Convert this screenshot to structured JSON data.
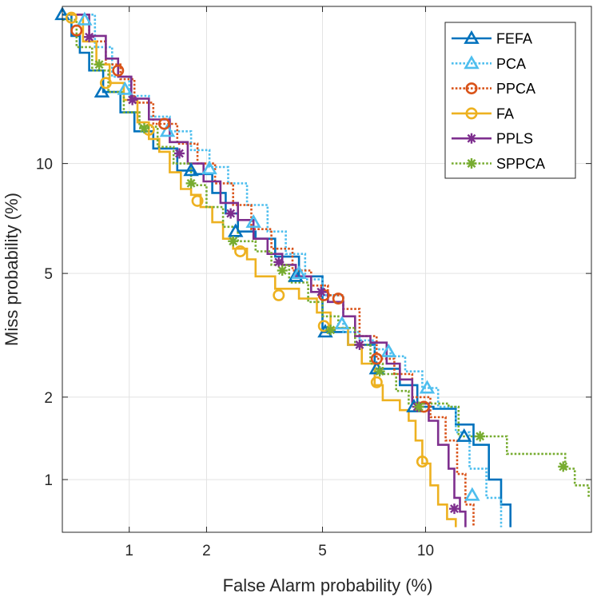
{
  "chart_data": {
    "type": "line",
    "subtype": "DET curve (normal-deviate scale)",
    "xlabel": "False Alarm probability (%)",
    "ylabel": "Miss probability (%)",
    "xlim": [
      0.52,
      24.3
    ],
    "ylim": [
      0.62,
      22.3
    ],
    "xticks": [
      1,
      2,
      5,
      10
    ],
    "xtick_labels": [
      "1",
      "2",
      "5",
      "10"
    ],
    "yticks": [
      1,
      2,
      5,
      10
    ],
    "ytick_labels": [
      "1",
      "2",
      "5",
      "10"
    ],
    "grid": true,
    "legend_position": "top-right",
    "series": [
      {
        "name": "FEFA",
        "color": "#0072BD",
        "linestyle": "solid",
        "marker": "triangle",
        "points": [
          [
            0.52,
            21.5
          ],
          [
            0.57,
            19.5
          ],
          [
            0.62,
            18.0
          ],
          [
            0.68,
            16.5
          ],
          [
            0.78,
            14.8
          ],
          [
            0.92,
            13.3
          ],
          [
            1.05,
            12.0
          ],
          [
            1.25,
            10.9
          ],
          [
            1.55,
            9.6
          ],
          [
            1.8,
            9.4
          ],
          [
            2.1,
            8.4
          ],
          [
            2.35,
            7.4
          ],
          [
            2.6,
            6.6
          ],
          [
            3.0,
            6.3
          ],
          [
            3.5,
            5.6
          ],
          [
            4.2,
            4.9
          ],
          [
            5.0,
            3.3
          ],
          [
            6.0,
            3.0
          ],
          [
            7.2,
            2.5
          ],
          [
            8.5,
            2.2
          ],
          [
            9.5,
            1.85
          ],
          [
            10.5,
            1.82
          ],
          [
            12.0,
            1.6
          ],
          [
            13.3,
            1.35
          ],
          [
            14.5,
            1.0
          ],
          [
            15.5,
            0.8
          ],
          [
            16.3,
            0.65
          ]
        ],
        "markers": [
          [
            0.52,
            21.5
          ],
          [
            0.77,
            14.8
          ],
          [
            1.75,
            9.6
          ],
          [
            2.55,
            6.6
          ],
          [
            4.1,
            4.9
          ],
          [
            5.1,
            3.3
          ],
          [
            7.3,
            2.5
          ],
          [
            9.3,
            1.85
          ],
          [
            12.6,
            1.45
          ]
        ]
      },
      {
        "name": "PCA",
        "color": "#4DBEEE",
        "linestyle": "dotted",
        "marker": "triangle",
        "points": [
          [
            0.62,
            21.5
          ],
          [
            0.72,
            18.5
          ],
          [
            0.85,
            16.0
          ],
          [
            1.0,
            14.5
          ],
          [
            1.2,
            13.0
          ],
          [
            1.45,
            12.0
          ],
          [
            1.75,
            10.8
          ],
          [
            2.05,
            9.8
          ],
          [
            2.4,
            8.9
          ],
          [
            2.8,
            7.8
          ],
          [
            3.3,
            6.6
          ],
          [
            3.8,
            5.7
          ],
          [
            4.4,
            4.8
          ],
          [
            5.0,
            4.3
          ],
          [
            5.8,
            3.3
          ],
          [
            6.5,
            3.1
          ],
          [
            7.2,
            2.9
          ],
          [
            8.0,
            2.75
          ],
          [
            8.8,
            2.45
          ],
          [
            9.8,
            2.15
          ],
          [
            10.8,
            1.85
          ],
          [
            12.0,
            1.5
          ],
          [
            13.0,
            1.1
          ],
          [
            14.3,
            0.85
          ],
          [
            15.5,
            0.65
          ]
        ],
        "markers": [
          [
            0.65,
            21.0
          ],
          [
            0.96,
            15.0
          ],
          [
            1.42,
            12.0
          ],
          [
            2.05,
            9.7
          ],
          [
            2.95,
            7.0
          ],
          [
            4.2,
            5.0
          ],
          [
            5.75,
            3.5
          ],
          [
            7.9,
            2.85
          ],
          [
            10.1,
            2.15
          ],
          [
            13.2,
            0.87
          ]
        ]
      },
      {
        "name": "PPCA",
        "color": "#D95319",
        "linestyle": "dotted",
        "marker": "circle",
        "points": [
          [
            0.58,
            21.5
          ],
          [
            0.68,
            19.0
          ],
          [
            0.8,
            17.0
          ],
          [
            0.92,
            15.8
          ],
          [
            1.05,
            14.0
          ],
          [
            1.25,
            12.5
          ],
          [
            1.55,
            11.2
          ],
          [
            1.85,
            10.0
          ],
          [
            2.15,
            8.9
          ],
          [
            2.5,
            7.8
          ],
          [
            2.9,
            6.7
          ],
          [
            3.4,
            5.9
          ],
          [
            4.0,
            5.1
          ],
          [
            4.6,
            4.6
          ],
          [
            5.2,
            4.3
          ],
          [
            5.8,
            3.9
          ],
          [
            6.5,
            3.2
          ],
          [
            7.3,
            2.7
          ],
          [
            8.2,
            2.4
          ],
          [
            9.2,
            2.0
          ],
          [
            10.3,
            1.7
          ],
          [
            11.3,
            1.4
          ],
          [
            12.1,
            1.05
          ],
          [
            12.7,
            0.8
          ],
          [
            13.3,
            0.65
          ]
        ],
        "markers": [
          [
            0.6,
            20.0
          ],
          [
            0.9,
            16.5
          ],
          [
            1.38,
            12.5
          ],
          [
            5.05,
            4.3
          ],
          [
            5.6,
            4.2
          ],
          [
            7.3,
            2.7
          ],
          [
            9.9,
            1.85
          ]
        ]
      },
      {
        "name": "FA",
        "color": "#EDB120",
        "linestyle": "solid",
        "marker": "circle",
        "points": [
          [
            0.56,
            21.5
          ],
          [
            0.64,
            19.0
          ],
          [
            0.73,
            17.0
          ],
          [
            0.83,
            15.5
          ],
          [
            0.95,
            14.2
          ],
          [
            1.08,
            12.6
          ],
          [
            1.2,
            11.5
          ],
          [
            1.32,
            10.7
          ],
          [
            1.45,
            9.5
          ],
          [
            1.6,
            8.6
          ],
          [
            1.75,
            8.3
          ],
          [
            1.9,
            7.7
          ],
          [
            2.1,
            7.0
          ],
          [
            2.3,
            6.3
          ],
          [
            2.5,
            5.9
          ],
          [
            2.8,
            5.5
          ],
          [
            3.0,
            4.9
          ],
          [
            3.5,
            4.5
          ],
          [
            4.2,
            4.2
          ],
          [
            4.8,
            3.8
          ],
          [
            5.3,
            3.4
          ],
          [
            6.0,
            3.0
          ],
          [
            6.6,
            2.6
          ],
          [
            7.2,
            2.2
          ],
          [
            7.6,
            1.95
          ],
          [
            8.5,
            1.8
          ],
          [
            9.0,
            1.65
          ],
          [
            9.4,
            1.4
          ],
          [
            9.8,
            1.15
          ],
          [
            10.3,
            0.95
          ],
          [
            10.8,
            0.8
          ],
          [
            11.4,
            0.7
          ],
          [
            12.0,
            0.65
          ]
        ],
        "markers": [
          [
            0.57,
            21.2
          ],
          [
            0.8,
            15.5
          ],
          [
            1.2,
            12.1
          ],
          [
            1.85,
            8.0
          ],
          [
            2.65,
            5.8
          ],
          [
            3.6,
            4.3
          ],
          [
            5.05,
            3.45
          ],
          [
            7.3,
            2.25
          ],
          [
            9.8,
            1.17
          ]
        ]
      },
      {
        "name": "PPLS",
        "color": "#7E2F8E",
        "linestyle": "solid",
        "marker": "asterisk",
        "points": [
          [
            0.6,
            21.5
          ],
          [
            0.68,
            19.5
          ],
          [
            0.8,
            17.5
          ],
          [
            0.9,
            16.0
          ],
          [
            1.02,
            14.3
          ],
          [
            1.2,
            12.8
          ],
          [
            1.45,
            11.3
          ],
          [
            1.7,
            10.0
          ],
          [
            1.95,
            9.0
          ],
          [
            2.25,
            7.9
          ],
          [
            2.6,
            7.1
          ],
          [
            2.95,
            6.3
          ],
          [
            3.3,
            5.7
          ],
          [
            3.7,
            5.3
          ],
          [
            4.1,
            4.9
          ],
          [
            4.6,
            4.4
          ],
          [
            5.2,
            4.1
          ],
          [
            5.8,
            3.7
          ],
          [
            6.3,
            3.2
          ],
          [
            7.0,
            3.05
          ],
          [
            7.8,
            2.6
          ],
          [
            8.5,
            2.3
          ],
          [
            9.2,
            1.9
          ],
          [
            10.2,
            1.65
          ],
          [
            10.8,
            1.35
          ],
          [
            11.5,
            1.1
          ],
          [
            11.9,
            0.85
          ],
          [
            12.3,
            0.75
          ],
          [
            12.7,
            0.65
          ]
        ],
        "markers": [
          [
            0.68,
            19.4
          ],
          [
            1.03,
            14.2
          ],
          [
            1.58,
            10.6
          ],
          [
            2.45,
            7.4
          ],
          [
            3.6,
            5.4
          ],
          [
            4.95,
            4.4
          ],
          [
            6.5,
            3.0
          ],
          [
            9.5,
            1.85
          ],
          [
            11.9,
            0.77
          ]
        ]
      },
      {
        "name": "SPPCA",
        "color": "#77AC30",
        "linestyle": "dotted",
        "marker": "asterisk",
        "points": [
          [
            0.52,
            21.0
          ],
          [
            0.6,
            18.5
          ],
          [
            0.7,
            16.5
          ],
          [
            0.82,
            14.8
          ],
          [
            0.95,
            13.3
          ],
          [
            1.1,
            12.3
          ],
          [
            1.3,
            11.0
          ],
          [
            1.5,
            10.0
          ],
          [
            1.75,
            8.8
          ],
          [
            2.0,
            7.7
          ],
          [
            2.3,
            6.8
          ],
          [
            2.6,
            6.2
          ],
          [
            3.0,
            5.8
          ],
          [
            3.4,
            5.3
          ],
          [
            3.9,
            4.7
          ],
          [
            4.5,
            4.1
          ],
          [
            5.0,
            3.7
          ],
          [
            5.6,
            3.4
          ],
          [
            6.3,
            3.0
          ],
          [
            7.0,
            2.6
          ],
          [
            7.6,
            2.4
          ],
          [
            8.3,
            2.1
          ],
          [
            9.0,
            1.9
          ],
          [
            10.5,
            1.9
          ],
          [
            11.5,
            1.85
          ],
          [
            12.2,
            1.45
          ],
          [
            13.5,
            1.45
          ],
          [
            16.0,
            1.25
          ],
          [
            20.0,
            1.25
          ],
          [
            21.5,
            1.1
          ],
          [
            22.5,
            0.95
          ],
          [
            24.0,
            0.85
          ]
        ],
        "markers": [
          [
            0.75,
            17.0
          ],
          [
            1.15,
            12.2
          ],
          [
            1.75,
            8.9
          ],
          [
            2.5,
            6.2
          ],
          [
            3.7,
            5.1
          ],
          [
            5.3,
            3.35
          ],
          [
            7.45,
            2.45
          ],
          [
            9.6,
            1.85
          ],
          [
            13.8,
            1.45
          ],
          [
            21.3,
            1.12
          ]
        ]
      }
    ]
  }
}
